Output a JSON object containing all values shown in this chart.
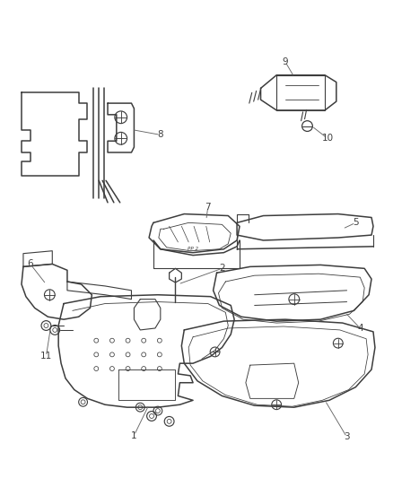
{
  "bg_color": "#ffffff",
  "line_color": "#3d3d3d",
  "label_color": "#3d3d3d",
  "figsize": [
    4.38,
    5.33
  ],
  "dpi": 100,
  "lw": 0.8,
  "lw_thick": 1.1,
  "label_fontsize": 7.5
}
